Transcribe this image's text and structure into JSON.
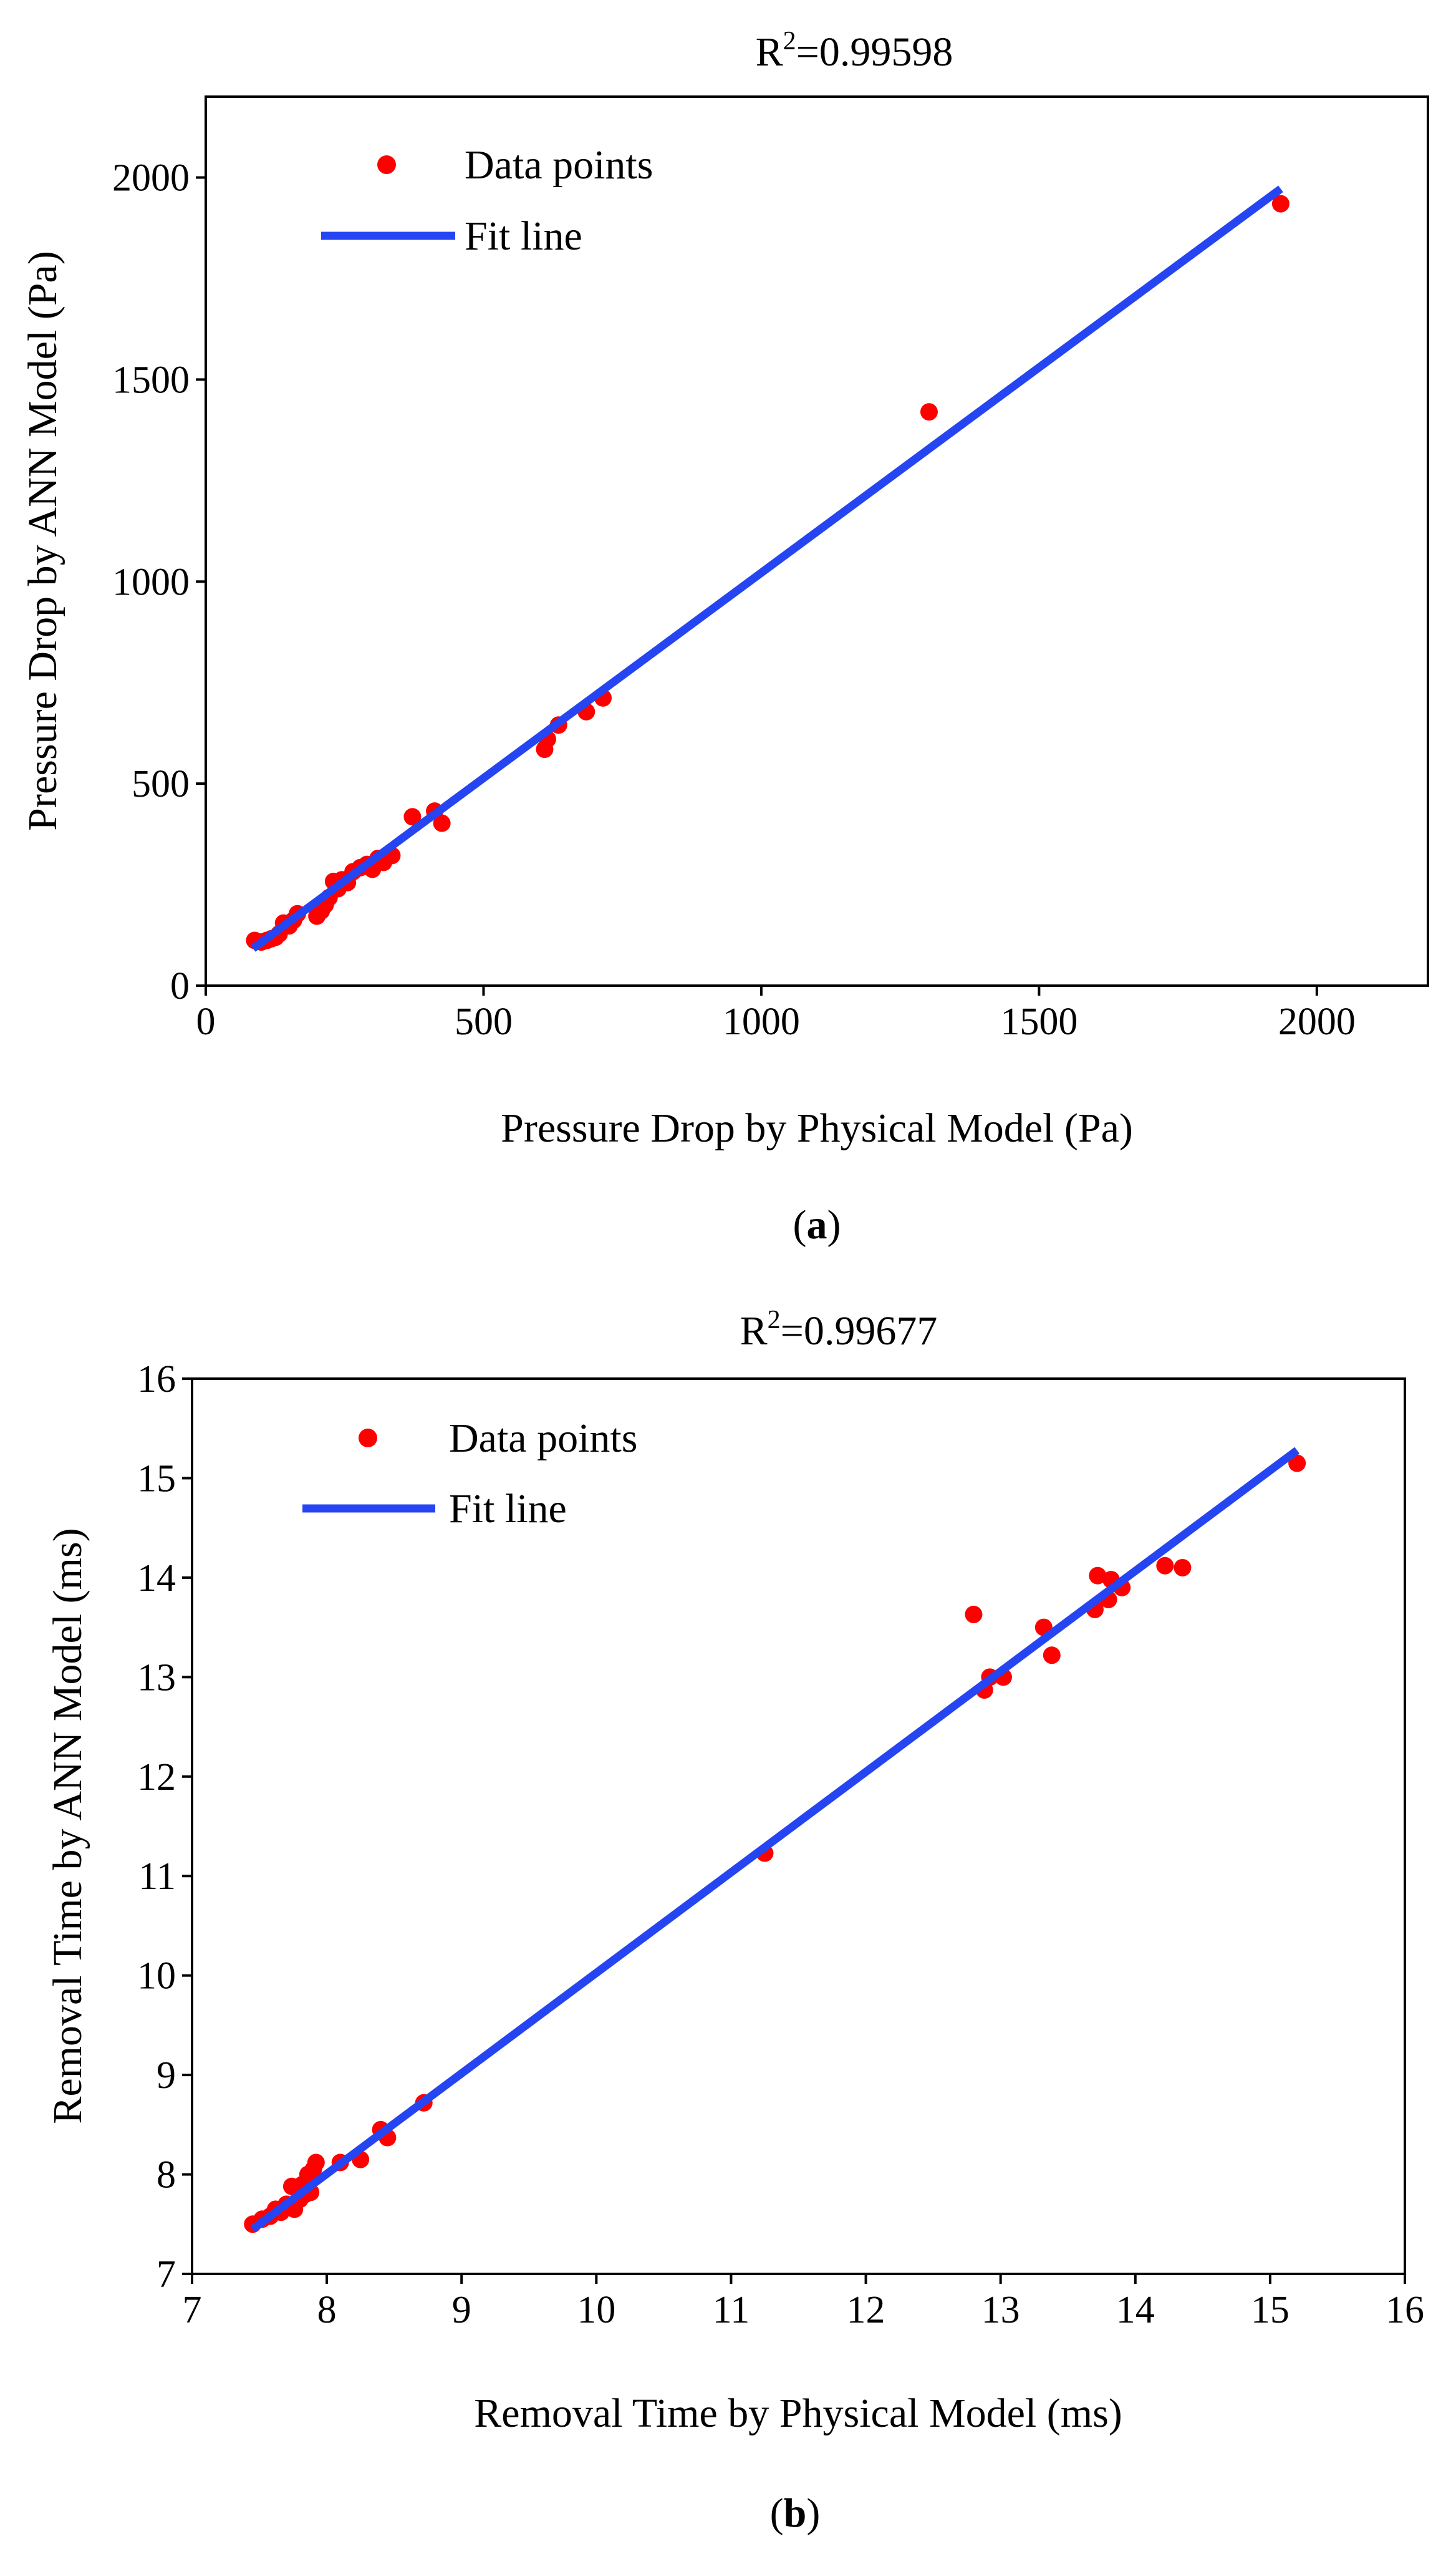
{
  "chart_data": [
    {
      "type": "scatter",
      "panel_label": "a",
      "title": "=0.99598",
      "title_prefix": "R",
      "title_sup": "2",
      "xlabel": "Pressure Drop by Physical Model (Pa)",
      "ylabel": "Pressure Drop by ANN Model (Pa)",
      "xlim": [
        0,
        2200
      ],
      "ylim": [
        0,
        2200
      ],
      "xticks": [
        0,
        500,
        1000,
        1500,
        2000
      ],
      "yticks": [
        0,
        500,
        1000,
        1500,
        2000
      ],
      "xtick_labels": [
        "0",
        "500",
        "1000",
        "1500",
        "2000"
      ],
      "ytick_labels": [
        "0",
        "500",
        "1000",
        "1500",
        "2000"
      ],
      "grid": false,
      "legend_position": "top-left",
      "series": [
        {
          "name": "Data points",
          "kind": "points",
          "color": "#ff0000",
          "x": [
            88,
            100,
            110,
            118,
            126,
            132,
            140,
            150,
            158,
            165,
            200,
            208,
            215,
            222,
            230,
            238,
            245,
            255,
            265,
            278,
            290,
            300,
            310,
            320,
            335,
            372,
            412,
            425,
            610,
            615,
            635,
            685,
            715,
            1302,
            1935
          ],
          "y": [
            112,
            108,
            112,
            116,
            120,
            128,
            155,
            148,
            162,
            178,
            172,
            185,
            200,
            218,
            258,
            240,
            262,
            255,
            282,
            292,
            300,
            288,
            315,
            305,
            322,
            418,
            432,
            402,
            585,
            610,
            645,
            678,
            712,
            1420,
            1935
          ]
        },
        {
          "name": "Fit line",
          "kind": "line",
          "color": "#2645f2",
          "x": [
            85,
            1935
          ],
          "y": [
            92,
            1972
          ]
        }
      ]
    },
    {
      "type": "scatter",
      "panel_label": "b",
      "title": "=0.99677",
      "title_prefix": "R",
      "title_sup": "2",
      "xlabel": "Removal Time by Physical Model (ms)",
      "ylabel": "Removal Time by ANN Model (ms)",
      "xlim": [
        7,
        16
      ],
      "ylim": [
        7,
        16
      ],
      "xticks": [
        7,
        8,
        9,
        10,
        11,
        12,
        13,
        14,
        15,
        16
      ],
      "yticks": [
        7,
        8,
        9,
        10,
        11,
        12,
        13,
        14,
        15,
        16
      ],
      "xtick_labels": [
        "7",
        "8",
        "9",
        "10",
        "11",
        "12",
        "13",
        "14",
        "15",
        "16"
      ],
      "ytick_labels": [
        "7",
        "8",
        "9",
        "10",
        "11",
        "12",
        "13",
        "14",
        "15",
        "16"
      ],
      "grid": false,
      "legend_position": "top-left",
      "series": [
        {
          "name": "Data points",
          "kind": "points",
          "color": "#ff0000",
          "x": [
            7.45,
            7.52,
            7.58,
            7.62,
            7.66,
            7.7,
            7.74,
            7.76,
            7.8,
            7.82,
            7.84,
            7.86,
            7.88,
            7.9,
            7.92,
            8.1,
            8.25,
            8.4,
            8.45,
            8.72,
            11.25,
            12.8,
            12.88,
            12.92,
            13.02,
            13.32,
            13.38,
            13.7,
            13.72,
            13.8,
            13.82,
            13.9,
            14.22,
            14.35,
            15.2
          ],
          "y": [
            7.5,
            7.55,
            7.58,
            7.65,
            7.62,
            7.7,
            7.88,
            7.65,
            7.75,
            7.9,
            7.8,
            8.0,
            7.82,
            8.05,
            8.12,
            8.12,
            8.15,
            8.45,
            8.37,
            8.72,
            11.23,
            13.63,
            12.87,
            13.0,
            13.0,
            13.5,
            13.22,
            13.68,
            14.02,
            13.78,
            13.98,
            13.9,
            14.12,
            14.1,
            15.15
          ]
        },
        {
          "name": "Fit line",
          "kind": "line",
          "color": "#2645f2",
          "x": [
            7.45,
            15.2
          ],
          "y": [
            7.45,
            15.28
          ]
        }
      ]
    }
  ]
}
